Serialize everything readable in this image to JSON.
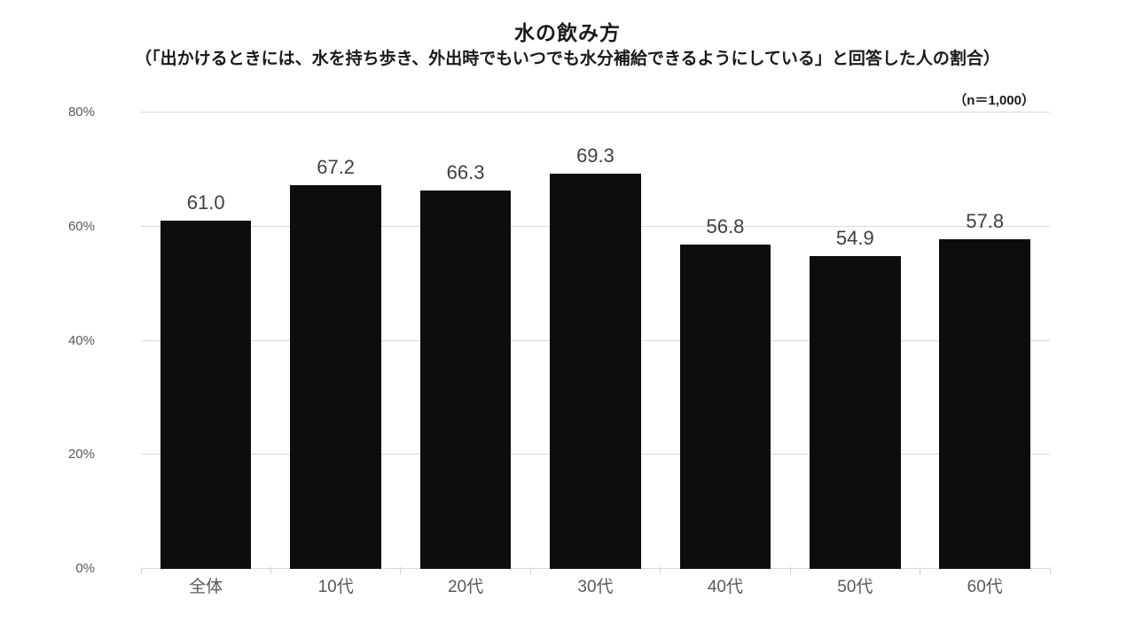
{
  "header": {
    "title": "水の飲み方",
    "subtitle": "（「出かけるときには、水を持ち歩き、外出時でもいつでも水分補給できるようにしている」と回答した人の割合）",
    "sample_size_label": "（n＝1,000）"
  },
  "chart_data": {
    "type": "bar",
    "title": "水の飲み方",
    "subtitle": "（「出かけるときには、水を持ち歩き、外出時でもいつでも水分補給できるようにしている」と回答した人の割合）",
    "sample_size": "n＝1,000",
    "categories": [
      "全体",
      "10代",
      "20代",
      "30代",
      "40代",
      "50代",
      "60代"
    ],
    "values": [
      61.0,
      67.2,
      66.3,
      69.3,
      56.8,
      54.9,
      57.8
    ],
    "value_labels": [
      "61.0",
      "67.2",
      "66.3",
      "69.3",
      "56.8",
      "54.9",
      "57.8"
    ],
    "xlabel": "",
    "ylabel": "",
    "ylim": [
      0,
      80
    ],
    "yticks": [
      0,
      20,
      40,
      60,
      80
    ],
    "ytick_suffix": "%",
    "grid": true,
    "legend": false,
    "colors": {
      "bar": "#0d0d0d",
      "value_label": "#404040",
      "axis_label": "#595959",
      "gridline": "#d9d9d9",
      "tick": "#d0d0d0"
    }
  }
}
